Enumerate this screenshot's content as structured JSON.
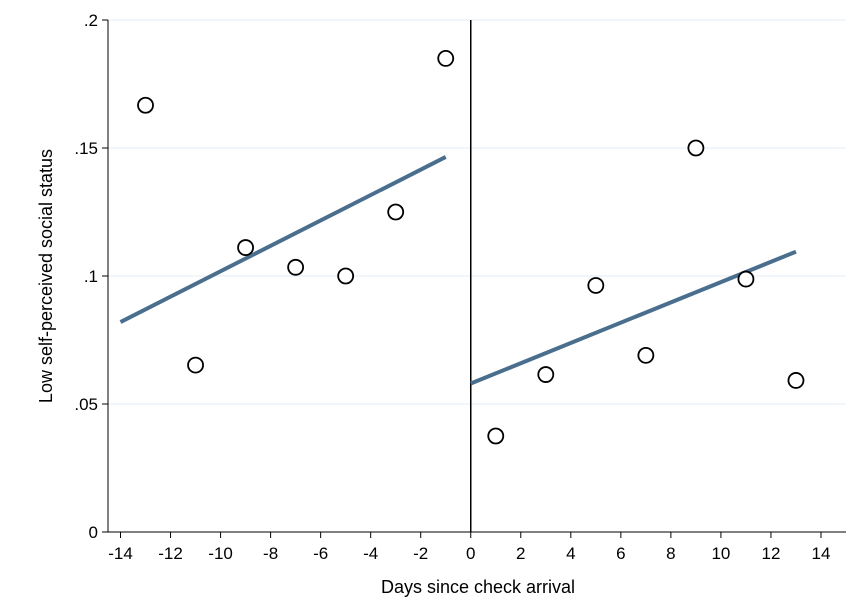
{
  "chart_data": {
    "type": "scatter",
    "title": "",
    "xlabel": "Days since check arrival",
    "ylabel": "Low self-perceived social status",
    "xlim": [
      -14.5,
      15
    ],
    "ylim": [
      0,
      0.2
    ],
    "x_ticks": [
      -14,
      -12,
      -10,
      -8,
      -6,
      -4,
      -2,
      0,
      2,
      4,
      6,
      8,
      10,
      12,
      14
    ],
    "x_tick_labels": [
      "-14",
      "-12",
      "-10",
      "-8",
      "-6",
      "-4",
      "-2",
      "0",
      "2",
      "4",
      "6",
      "8",
      "10",
      "12",
      "14"
    ],
    "y_ticks": [
      0,
      0.05,
      0.1,
      0.15,
      0.2
    ],
    "y_tick_labels": [
      "0",
      ".05",
      ".1",
      ".15",
      ".2"
    ],
    "grid": "horizontal",
    "cutoff_line_x": 0,
    "points": {
      "x": [
        -13,
        -11,
        -9,
        -7,
        -5,
        -3,
        -1,
        1,
        3,
        5,
        7,
        9,
        11,
        13
      ],
      "y": [
        0.1667,
        0.0652,
        0.1111,
        0.1034,
        0.1,
        0.125,
        0.185,
        0.0375,
        0.0615,
        0.0963,
        0.069,
        0.15,
        0.0988,
        0.0592
      ]
    },
    "fit_lines": [
      {
        "x": [
          -14,
          -1
        ],
        "y": [
          0.082,
          0.1465
        ]
      },
      {
        "x": [
          0,
          13
        ],
        "y": [
          0.058,
          0.1095
        ]
      }
    ],
    "colors": {
      "fit": "#4a6e8e",
      "marker": "#000000",
      "grid": "#e6eef3"
    }
  }
}
